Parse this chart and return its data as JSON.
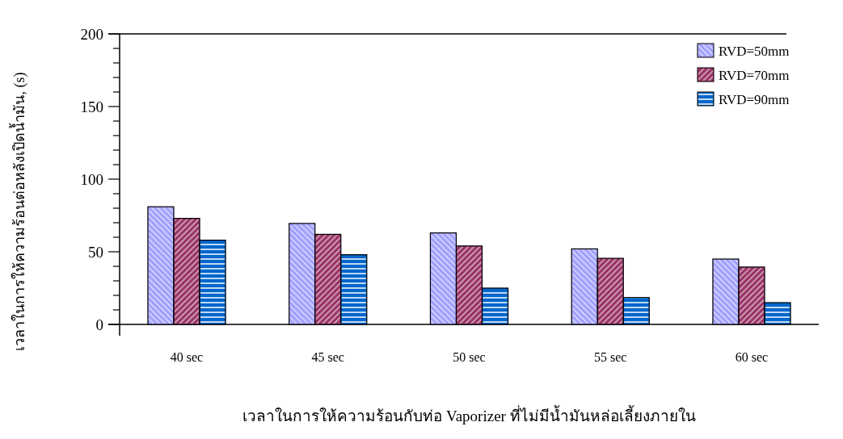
{
  "chart_data": {
    "type": "bar",
    "xlabel": "เวลาในการให้ความร้อนกับท่อ Vaporizer ที่ไม่มีน้ำมันหล่อเลี้ยงภายใน",
    "ylabel": "เวลาในการให้ความร้อนต่อหลังเปิดน้ำมัน, (s)",
    "categories": [
      "40 sec",
      "45 sec",
      "50 sec",
      "55 sec",
      "60 sec"
    ],
    "series": [
      {
        "name": "RVD=50mm",
        "color": "#a0a0ff",
        "values": [
          81,
          69.5,
          63,
          52,
          45
        ]
      },
      {
        "name": "RVD=70mm",
        "color": "#993366",
        "values": [
          73,
          62,
          54,
          45.5,
          39.5
        ]
      },
      {
        "name": "RVD=90mm",
        "color": "#0066cc",
        "values": [
          58,
          48,
          25,
          18.5,
          15
        ]
      }
    ],
    "ylim": [
      0,
      200
    ],
    "yticks": [
      0,
      {
        "value": 10,
        "label": null
      },
      {
        "value": 20,
        "label": null
      },
      {
        "value": 30,
        "label": null
      },
      {
        "value": 40,
        "label": null
      },
      50,
      {
        "value": 60,
        "label": null
      },
      {
        "value": 70,
        "label": null
      },
      {
        "value": 80,
        "label": null
      },
      {
        "value": 90,
        "label": null
      },
      100,
      {
        "value": 110,
        "label": null
      },
      {
        "value": 120,
        "label": null
      },
      {
        "value": 130,
        "label": null
      },
      {
        "value": 140,
        "label": null
      },
      150,
      {
        "value": 160,
        "label": null
      },
      {
        "value": 170,
        "label": null
      },
      {
        "value": 180,
        "label": null
      },
      {
        "value": 190,
        "label": null
      },
      200
    ],
    "grid": false,
    "legend": "top right"
  }
}
